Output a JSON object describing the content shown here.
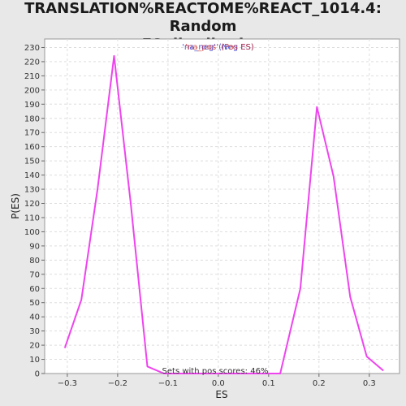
{
  "chart_data": {
    "type": "line",
    "title_line1": "TRANSLATION%REACTOME%REACT_1014.4: Random",
    "title_line2": "ES distribution",
    "xlabel": "ES",
    "ylabel": "P(ES)",
    "xlim": [
      -0.345,
      0.36
    ],
    "ylim": [
      0,
      236
    ],
    "x_ticks": [
      -0.3,
      -0.2,
      -0.1,
      0.0,
      0.1,
      0.2,
      0.3
    ],
    "x_tick_labels": [
      "−0.3",
      "−0.2",
      "−0.1",
      "0.0",
      "0.1",
      "0.2",
      "0.3"
    ],
    "y_ticks": [
      0,
      10,
      20,
      30,
      40,
      50,
      60,
      70,
      80,
      90,
      100,
      110,
      120,
      130,
      140,
      150,
      160,
      170,
      180,
      190,
      200,
      210,
      220,
      230
    ],
    "grid": true,
    "legend": {
      "placement": "top-center",
      "entries": [
        {
          "label": "'na_neg' (Neg ES)",
          "color": "#3333cc"
        },
        {
          "label": "'na_pos' (Pos ES)",
          "color": "#cc3333"
        }
      ]
    },
    "annotation": "Sets with pos scores: 46%",
    "series": [
      {
        "color": "#ee44ee",
        "x": [
          -0.305,
          -0.272,
          -0.24,
          -0.207,
          -0.174,
          -0.141,
          -0.108,
          -0.075,
          -0.042,
          -0.009,
          0.024,
          0.057,
          0.09,
          0.123,
          0.163,
          0.196,
          0.229,
          0.262,
          0.295,
          0.328
        ],
        "y": [
          18,
          52,
          130,
          224,
          120,
          5,
          0,
          0,
          0,
          0,
          0,
          0,
          0,
          0,
          60,
          188,
          139,
          54,
          12,
          2
        ]
      }
    ]
  }
}
